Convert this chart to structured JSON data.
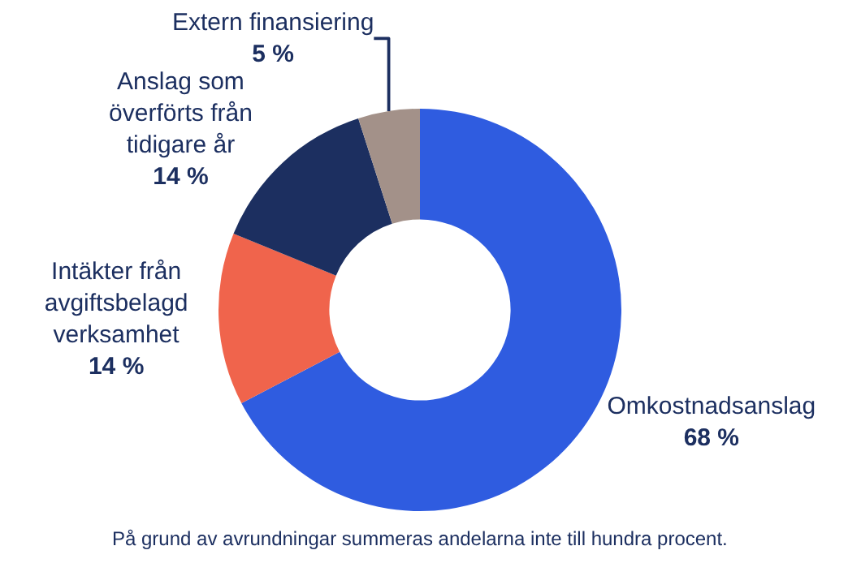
{
  "chart_data": {
    "type": "donut",
    "categories": [
      "Omkostnadsanslag",
      "Intäkter från avgiftsbelagd verksamhet",
      "Anslag som överförts från tidigare år",
      "Extern finansiering"
    ],
    "values": [
      68,
      14,
      14,
      5
    ],
    "colors": [
      "#2f5ce0",
      "#f0644c",
      "#1c2f60",
      "#a39189"
    ],
    "value_labels": [
      "68 %",
      "14 %",
      "14 %",
      "5 %"
    ],
    "legend": false,
    "annotations": [
      "På grund av avrundningar summeras andelarna inte till hundra procent."
    ]
  }
}
